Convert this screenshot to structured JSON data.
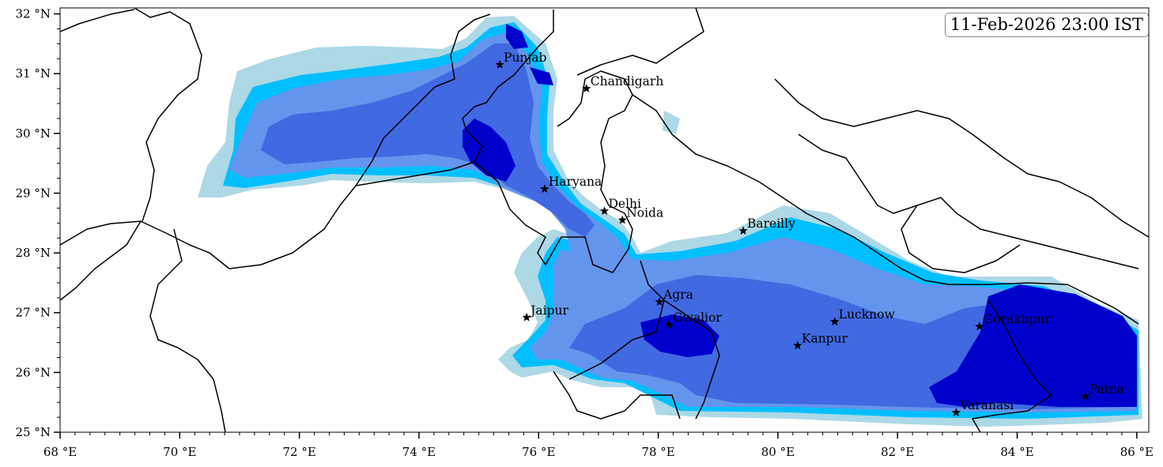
{
  "timestamp": "11-Feb-2026 23:00 IST",
  "map": {
    "lon_range": [
      68,
      86.2
    ],
    "lat_range": [
      25,
      32.1
    ],
    "lon_ticks": [
      {
        "value": 68,
        "label": "68 °E"
      },
      {
        "value": 70,
        "label": "70 °E"
      },
      {
        "value": 72,
        "label": "72 °E"
      },
      {
        "value": 74,
        "label": "74 °E"
      },
      {
        "value": 76,
        "label": "76 °E"
      },
      {
        "value": 78,
        "label": "78 °E"
      },
      {
        "value": 80,
        "label": "80 °E"
      },
      {
        "value": 82,
        "label": "82 °E"
      },
      {
        "value": 84,
        "label": "84 °E"
      },
      {
        "value": 86,
        "label": "86 °E"
      }
    ],
    "lat_ticks": [
      {
        "value": 25,
        "label": "25 °N"
      },
      {
        "value": 26,
        "label": "26 °N"
      },
      {
        "value": 27,
        "label": "27 °N"
      },
      {
        "value": 28,
        "label": "28 °N"
      },
      {
        "value": 29,
        "label": "29 °N"
      },
      {
        "value": 30,
        "label": "30 °N"
      },
      {
        "value": 31,
        "label": "31 °N"
      },
      {
        "value": 32,
        "label": "32 °N"
      }
    ],
    "colors": {
      "level1": "#add8e6",
      "level2": "#00bfff",
      "level3": "#6495ed",
      "level4": "#4169e1",
      "level5": "#0000cd",
      "border": "#000000"
    },
    "cities": [
      {
        "name": "Punjab",
        "lon": 75.35,
        "lat": 31.15
      },
      {
        "name": "Chandigarh",
        "lon": 76.8,
        "lat": 30.75
      },
      {
        "name": "Haryana",
        "lon": 76.1,
        "lat": 29.07
      },
      {
        "name": "Delhi",
        "lon": 77.1,
        "lat": 28.7
      },
      {
        "name": "Noida",
        "lon": 77.4,
        "lat": 28.55
      },
      {
        "name": "Bareilly",
        "lon": 79.42,
        "lat": 28.37
      },
      {
        "name": "Agra",
        "lon": 78.02,
        "lat": 27.18
      },
      {
        "name": "Jaipur",
        "lon": 75.8,
        "lat": 26.92
      },
      {
        "name": "Gwalior",
        "lon": 78.18,
        "lat": 26.8
      },
      {
        "name": "Lucknow",
        "lon": 80.95,
        "lat": 26.85
      },
      {
        "name": "Gorakhpur",
        "lon": 83.37,
        "lat": 26.77
      },
      {
        "name": "Kanpur",
        "lon": 80.33,
        "lat": 26.45
      },
      {
        "name": "Patna",
        "lon": 85.14,
        "lat": 25.6
      },
      {
        "name": "Varanasi",
        "lon": 82.98,
        "lat": 25.33
      }
    ]
  }
}
